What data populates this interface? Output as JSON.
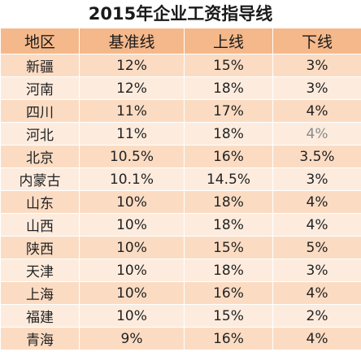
{
  "title": "2015年企业工资指导线",
  "colors": {
    "header_bg": "#f5b88a",
    "band_a": "#fbdcc3",
    "band_b": "#fdecde"
  },
  "columns": [
    "地区",
    "基准线",
    "上线",
    "下线"
  ],
  "rows": [
    {
      "region": "新疆",
      "base": "12%",
      "upper": "15%",
      "lower": "3%"
    },
    {
      "region": "河南",
      "base": "12%",
      "upper": "18%",
      "lower": "3%"
    },
    {
      "region": "四川",
      "base": "11%",
      "upper": "17%",
      "lower": "4%"
    },
    {
      "region": "河北",
      "base": "11%",
      "upper": "18%",
      "lower": "4%"
    },
    {
      "region": "北京",
      "base": "10.5%",
      "upper": "16%",
      "lower": "3.5%"
    },
    {
      "region": "内蒙古",
      "base": "10.1%",
      "upper": "14.5%",
      "lower": "3%"
    },
    {
      "region": "山东",
      "base": "10%",
      "upper": "18%",
      "lower": "4%"
    },
    {
      "region": "山西",
      "base": "10%",
      "upper": "18%",
      "lower": "4%"
    },
    {
      "region": "陕西",
      "base": "10%",
      "upper": "15%",
      "lower": "5%"
    },
    {
      "region": "天津",
      "base": "10%",
      "upper": "18%",
      "lower": "3%"
    },
    {
      "region": "上海",
      "base": "10%",
      "upper": "16%",
      "lower": "4%"
    },
    {
      "region": "福建",
      "base": "10%",
      "upper": "15%",
      "lower": "2%"
    },
    {
      "region": "青海",
      "base": "9%",
      "upper": "16%",
      "lower": "4%"
    }
  ]
}
